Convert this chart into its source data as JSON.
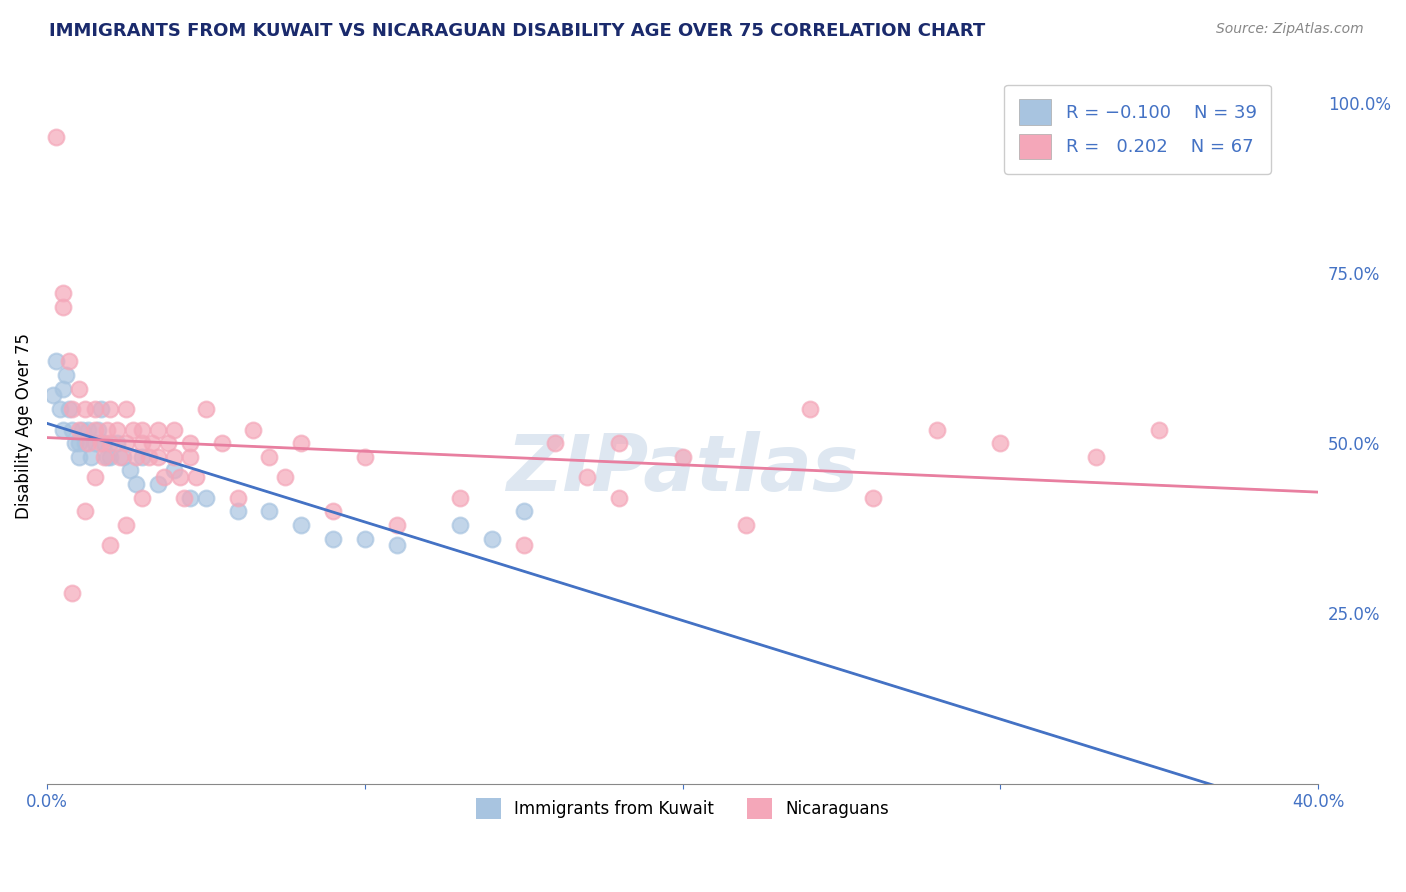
{
  "title": "IMMIGRANTS FROM KUWAIT VS NICARAGUAN DISABILITY AGE OVER 75 CORRELATION CHART",
  "source": "Source: ZipAtlas.com",
  "ylabel": "Disability Age Over 75",
  "xlim": [
    0.0,
    0.4
  ],
  "ylim": [
    0.0,
    1.05
  ],
  "x_ticks": [
    0.0,
    0.1,
    0.2,
    0.3,
    0.4
  ],
  "x_tick_labels": [
    "0.0%",
    "",
    "",
    "",
    "40.0%"
  ],
  "y_ticks_right": [
    0.25,
    0.5,
    0.75,
    1.0
  ],
  "y_tick_labels_right": [
    "25.0%",
    "50.0%",
    "75.0%",
    "100.0%"
  ],
  "color_kuwait": "#a8c4e0",
  "color_nicaragua": "#f4a7b9",
  "color_kuwait_line": "#4472c4",
  "color_nicaragua_line": "#e87fa0",
  "color_axis": "#4472c4",
  "background_color": "#ffffff",
  "grid_color": "#cccccc",
  "kuwait_x": [
    0.002,
    0.003,
    0.004,
    0.005,
    0.005,
    0.006,
    0.007,
    0.008,
    0.009,
    0.01,
    0.01,
    0.011,
    0.012,
    0.013,
    0.014,
    0.015,
    0.016,
    0.017,
    0.018,
    0.019,
    0.02,
    0.022,
    0.024,
    0.026,
    0.028,
    0.03,
    0.035,
    0.04,
    0.045,
    0.05,
    0.06,
    0.07,
    0.08,
    0.09,
    0.1,
    0.11,
    0.13,
    0.14,
    0.15
  ],
  "kuwait_y": [
    0.57,
    0.62,
    0.55,
    0.58,
    0.52,
    0.6,
    0.55,
    0.52,
    0.5,
    0.5,
    0.48,
    0.52,
    0.5,
    0.52,
    0.48,
    0.5,
    0.52,
    0.55,
    0.5,
    0.48,
    0.48,
    0.5,
    0.48,
    0.46,
    0.44,
    0.48,
    0.44,
    0.46,
    0.42,
    0.42,
    0.4,
    0.4,
    0.38,
    0.36,
    0.36,
    0.35,
    0.38,
    0.36,
    0.4
  ],
  "nicaragua_x": [
    0.003,
    0.005,
    0.007,
    0.008,
    0.01,
    0.01,
    0.012,
    0.013,
    0.015,
    0.015,
    0.017,
    0.018,
    0.019,
    0.02,
    0.02,
    0.022,
    0.023,
    0.025,
    0.025,
    0.027,
    0.028,
    0.03,
    0.03,
    0.032,
    0.033,
    0.035,
    0.035,
    0.037,
    0.038,
    0.04,
    0.04,
    0.042,
    0.043,
    0.045,
    0.045,
    0.047,
    0.05,
    0.055,
    0.06,
    0.065,
    0.07,
    0.075,
    0.08,
    0.09,
    0.1,
    0.11,
    0.13,
    0.15,
    0.16,
    0.17,
    0.18,
    0.2,
    0.22,
    0.24,
    0.26,
    0.28,
    0.3,
    0.33,
    0.005,
    0.35,
    0.18,
    0.015,
    0.008,
    0.012,
    0.02,
    0.025,
    0.03
  ],
  "nicaragua_y": [
    0.95,
    0.7,
    0.62,
    0.55,
    0.58,
    0.52,
    0.55,
    0.5,
    0.52,
    0.55,
    0.5,
    0.48,
    0.52,
    0.55,
    0.5,
    0.52,
    0.48,
    0.5,
    0.55,
    0.52,
    0.48,
    0.5,
    0.52,
    0.48,
    0.5,
    0.52,
    0.48,
    0.45,
    0.5,
    0.52,
    0.48,
    0.45,
    0.42,
    0.48,
    0.5,
    0.45,
    0.55,
    0.5,
    0.42,
    0.52,
    0.48,
    0.45,
    0.5,
    0.4,
    0.48,
    0.38,
    0.42,
    0.35,
    0.5,
    0.45,
    0.42,
    0.48,
    0.38,
    0.55,
    0.42,
    0.52,
    0.5,
    0.48,
    0.72,
    0.52,
    0.5,
    0.45,
    0.28,
    0.4,
    0.35,
    0.38,
    0.42
  ]
}
